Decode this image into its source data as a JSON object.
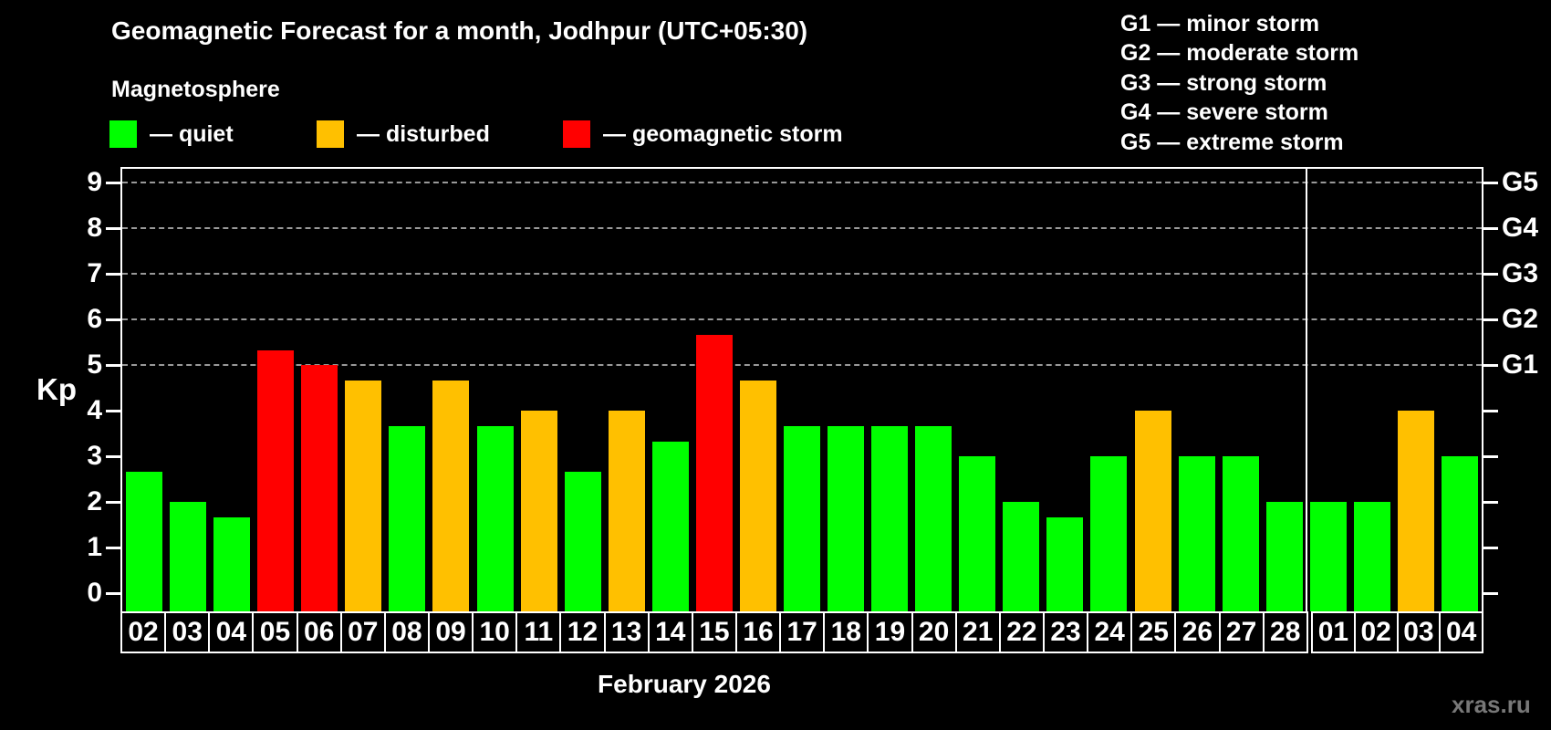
{
  "header": {
    "title": "Geomagnetic Forecast for a month, Jodhpur (UTC+05:30)",
    "subtitle": "Magnetosphere"
  },
  "legend": {
    "items": [
      {
        "name": "quiet",
        "label": "— quiet",
        "color": "#00ff00"
      },
      {
        "name": "disturbed",
        "label": "— disturbed",
        "color": "#ffc000"
      },
      {
        "name": "storm",
        "label": "— geomagnetic storm",
        "color": "#ff0000"
      }
    ]
  },
  "storm_scale_legend": {
    "items": [
      "G1 — minor storm",
      "G2 — moderate storm",
      "G3 — strong storm",
      "G4 — severe storm",
      "G5 — extreme storm"
    ]
  },
  "watermark": "xras.ru",
  "chart_data": {
    "type": "bar",
    "title": "Geomagnetic Forecast for a month, Jodhpur (UTC+05:30)",
    "ylabel": "Kp",
    "xlabel": "February 2026",
    "ylim": [
      0,
      9
    ],
    "yticks": [
      0,
      1,
      2,
      3,
      4,
      5,
      6,
      7,
      8,
      9
    ],
    "grid": "horizontal dashed lines at storm levels only",
    "gridline_levels": [
      5,
      6,
      7,
      8,
      9
    ],
    "right_axis": {
      "labels": [
        "G1",
        "G2",
        "G3",
        "G4",
        "G5"
      ],
      "at_values": [
        5,
        6,
        7,
        8,
        9
      ]
    },
    "legend_position": "top",
    "month_separator_after_index": 26,
    "categories": [
      "02",
      "03",
      "04",
      "05",
      "06",
      "07",
      "08",
      "09",
      "10",
      "11",
      "12",
      "13",
      "14",
      "15",
      "16",
      "17",
      "18",
      "19",
      "20",
      "21",
      "22",
      "23",
      "24",
      "25",
      "26",
      "27",
      "28",
      "01",
      "02",
      "03",
      "04"
    ],
    "values": [
      2.67,
      2,
      1.67,
      5.33,
      5,
      4.67,
      3.67,
      4.67,
      3.67,
      4,
      2.67,
      4,
      3.33,
      5.67,
      4.67,
      3.67,
      3.67,
      3.67,
      3.67,
      3,
      2,
      1.67,
      3,
      4,
      3,
      3,
      2,
      2,
      2,
      4,
      3
    ],
    "statuses": [
      "quiet",
      "quiet",
      "quiet",
      "storm",
      "storm",
      "disturbed",
      "quiet",
      "disturbed",
      "quiet",
      "disturbed",
      "quiet",
      "disturbed",
      "quiet",
      "storm",
      "disturbed",
      "quiet",
      "quiet",
      "quiet",
      "quiet",
      "quiet",
      "quiet",
      "quiet",
      "quiet",
      "disturbed",
      "quiet",
      "quiet",
      "quiet",
      "quiet",
      "quiet",
      "disturbed",
      "quiet"
    ]
  },
  "colors": {
    "background": "#000000",
    "text": "#ffffff",
    "quiet": "#00ff00",
    "disturbed": "#ffc000",
    "storm": "#ff0000",
    "gridline": "#999999",
    "axis": "#ffffff",
    "watermark": "#787878"
  }
}
